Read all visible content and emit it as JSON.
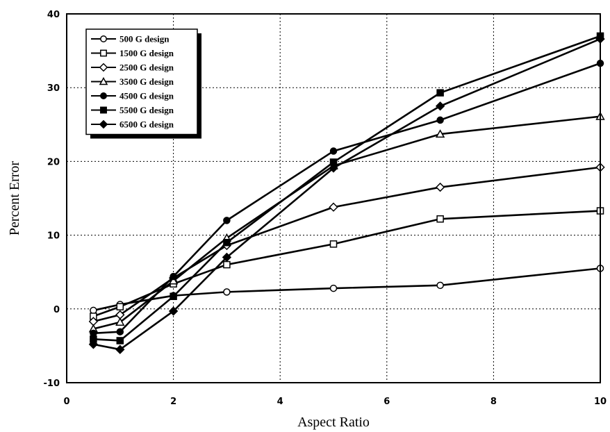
{
  "chart_data": {
    "type": "line",
    "title": "",
    "xlabel": "Aspect Ratio",
    "ylabel": "Percent Error",
    "xlim": [
      0,
      10
    ],
    "ylim": [
      -10,
      40
    ],
    "xticks": [
      0,
      2,
      4,
      6,
      8,
      10
    ],
    "yticks": [
      -10,
      0,
      10,
      20,
      30,
      40
    ],
    "xtick_labels": [
      "0",
      "2",
      "4",
      "6",
      "8",
      "10"
    ],
    "ytick_labels": [
      "-10",
      "0",
      "10",
      "20",
      "30",
      "40"
    ],
    "grid": true,
    "legend_position": "top-left",
    "series": [
      {
        "name": "500 G design",
        "marker": "open-circle",
        "x": [
          0.5,
          1,
          2,
          3,
          5,
          7,
          10
        ],
        "y": [
          -0.2,
          0.6,
          1.8,
          2.3,
          2.8,
          3.2,
          5.5
        ]
      },
      {
        "name": "1500 G design",
        "marker": "open-square",
        "x": [
          0.5,
          1,
          2,
          3,
          5,
          7,
          10
        ],
        "y": [
          -1.0,
          0.3,
          3.4,
          6.0,
          8.8,
          12.2,
          13.3
        ]
      },
      {
        "name": "2500 G design",
        "marker": "open-diamond",
        "x": [
          0.5,
          1,
          2,
          3,
          5,
          7,
          10
        ],
        "y": [
          -1.7,
          -0.8,
          4.2,
          8.6,
          13.8,
          16.5,
          19.2
        ]
      },
      {
        "name": "3500 G design",
        "marker": "open-triangle",
        "x": [
          0.5,
          1,
          2,
          3,
          5,
          7,
          10
        ],
        "y": [
          -2.7,
          -1.8,
          3.8,
          9.6,
          19.4,
          23.7,
          26.1
        ]
      },
      {
        "name": "4500 G design",
        "marker": "filled-circle",
        "x": [
          0.5,
          1,
          2,
          3,
          5,
          7,
          10
        ],
        "y": [
          -3.3,
          -3.1,
          4.4,
          12.0,
          21.4,
          25.6,
          33.3
        ]
      },
      {
        "name": "5500 G design",
        "marker": "filled-square",
        "x": [
          0.5,
          1,
          2,
          3,
          5,
          7,
          10
        ],
        "y": [
          -4.1,
          -4.3,
          1.7,
          9.0,
          19.9,
          29.3,
          37.0
        ]
      },
      {
        "name": "6500 G design",
        "marker": "filled-diamond",
        "x": [
          0.5,
          1,
          2,
          3,
          5,
          7,
          10
        ],
        "y": [
          -4.8,
          -5.5,
          -0.3,
          7.0,
          19.1,
          27.5,
          36.6
        ]
      }
    ]
  }
}
